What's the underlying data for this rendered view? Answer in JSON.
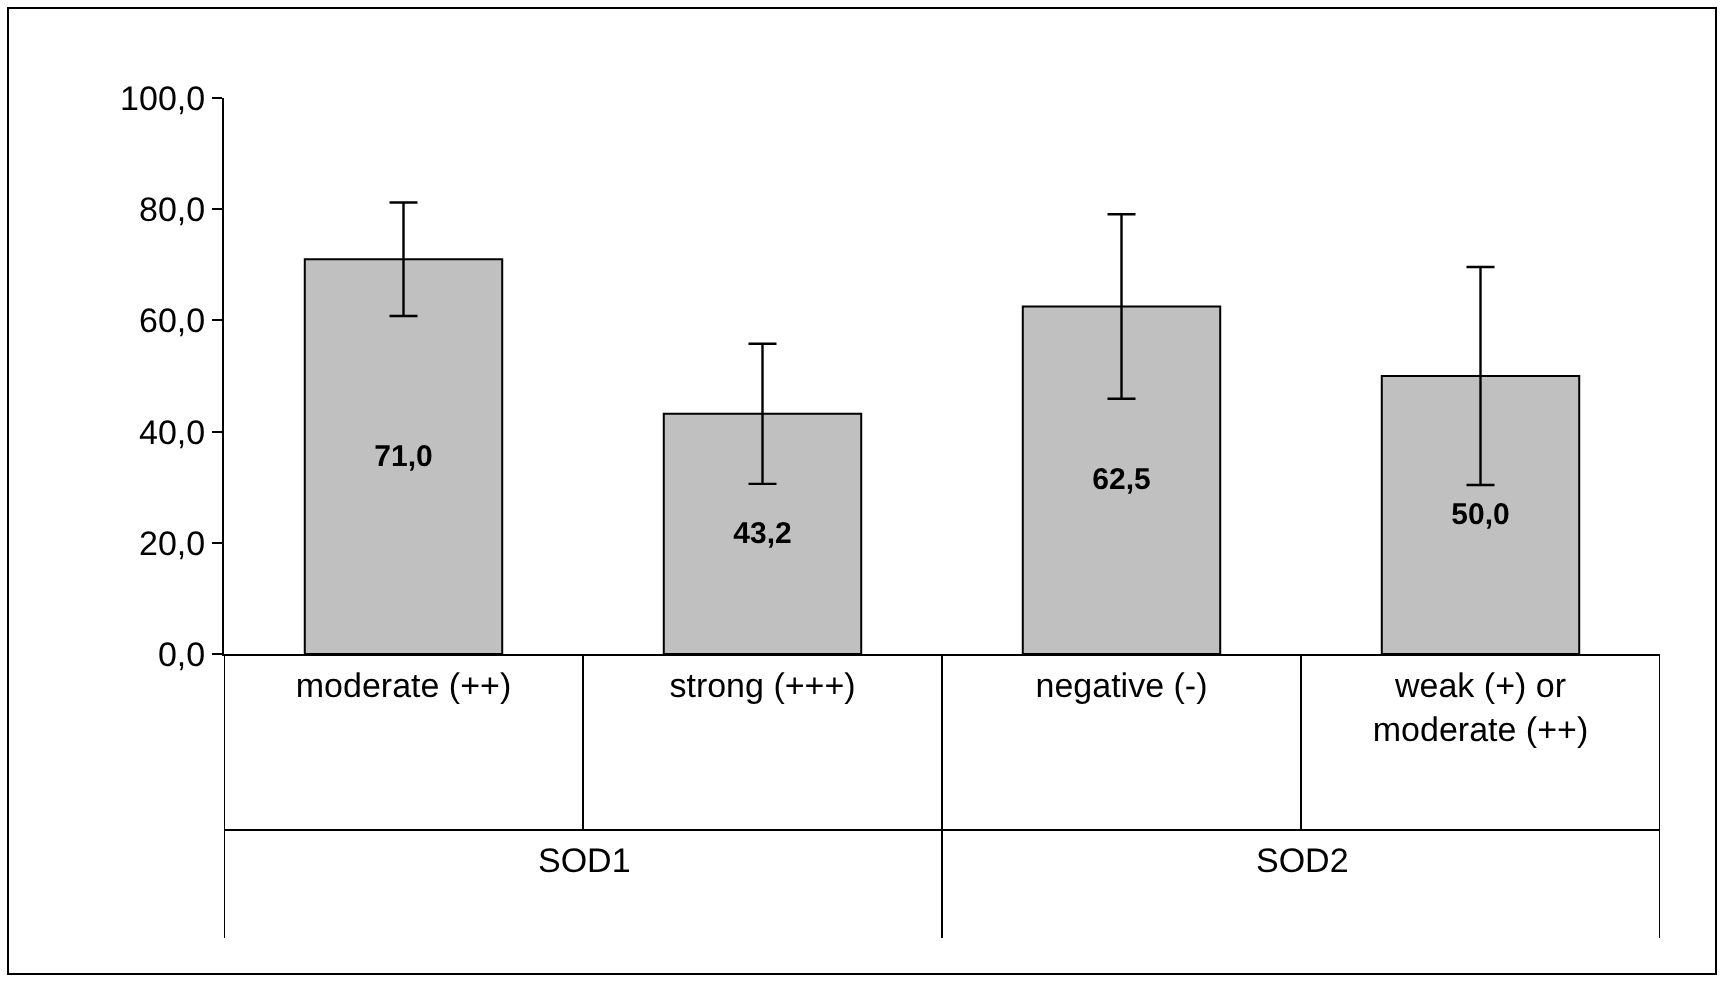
{
  "chart_data": {
    "type": "bar",
    "categories": [
      "moderate (++)",
      "strong (+++)",
      "negative (-)",
      "weak (+) or moderate (++)"
    ],
    "values": [
      71.0,
      43.2,
      62.5,
      50.0
    ],
    "value_labels": [
      "71,0",
      "43,2",
      "62,5",
      "50,0"
    ],
    "errors": [
      10.2,
      12.6,
      16.6,
      19.6
    ],
    "color": "#c0c0c0",
    "ylim": [
      0,
      100
    ],
    "yticks": [
      {
        "value": 0,
        "label": "0,0"
      },
      {
        "value": 20,
        "label": "20,0"
      },
      {
        "value": 40,
        "label": "40,0"
      },
      {
        "value": 60,
        "label": "60,0"
      },
      {
        "value": 80,
        "label": "80,0"
      },
      {
        "value": 100,
        "label": "100,0"
      }
    ],
    "annotations": [
      "SOD1",
      "SOD2"
    ],
    "legend": false
  }
}
